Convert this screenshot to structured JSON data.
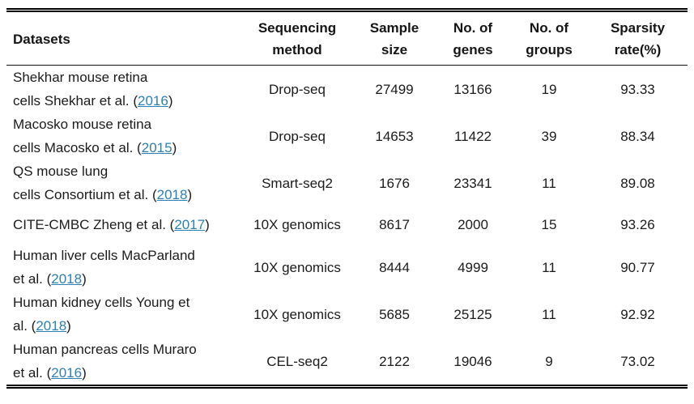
{
  "page": {
    "background": "#ffffff",
    "text_color": "#1b1b1b",
    "link_color": "#2c80b4"
  },
  "table": {
    "headers": {
      "datasets": "Datasets",
      "method_line1": "Sequencing",
      "method_line2": "method",
      "sample_line1": "Sample",
      "sample_line2": "size",
      "genes_line1": "No. of",
      "genes_line2": "genes",
      "groups_line1": "No. of",
      "groups_line2": "groups",
      "sparsity_line1": "Sparsity",
      "sparsity_line2": "rate(%)"
    },
    "rows": [
      {
        "line1": "Shekhar mouse retina",
        "line2_pre": "cells Shekhar et al. (",
        "year": "2016",
        "line2_post": ")",
        "method": "Drop-seq",
        "sample": "27499",
        "genes": "13166",
        "groups": "19",
        "sparsity": "93.33"
      },
      {
        "line1": "Macosko mouse retina",
        "line2_pre": "cells Macosko et al. (",
        "year": "2015",
        "line2_post": ")",
        "method": "Drop-seq",
        "sample": "14653",
        "genes": "11422",
        "groups": "39",
        "sparsity": "88.34"
      },
      {
        "line1": "QS mouse lung",
        "line2_pre": "cells Consortium et al. (",
        "year": "2018",
        "line2_post": ")",
        "method": "Smart-seq2",
        "sample": "1676",
        "genes": "23341",
        "groups": "11",
        "sparsity": "89.08"
      },
      {
        "line1": "",
        "line2_pre": "CITE-CMBC Zheng et al. (",
        "year": "2017",
        "line2_post": ")",
        "method": "10X genomics",
        "sample": "8617",
        "genes": "2000",
        "groups": "15",
        "sparsity": "93.26"
      },
      {
        "line1": "Human liver cells MacParland",
        "line2_pre": "et al. (",
        "year": "2018",
        "line2_post": ")",
        "method": "10X genomics",
        "sample": "8444",
        "genes": "4999",
        "groups": "11",
        "sparsity": "90.77"
      },
      {
        "line1": "Human kidney cells Young et",
        "line2_pre": "al. (",
        "year": "2018",
        "line2_post": ")",
        "method": "10X genomics",
        "sample": "5685",
        "genes": "25125",
        "groups": "11",
        "sparsity": "92.92"
      },
      {
        "line1": "Human pancreas cells Muraro",
        "line2_pre": "et al. (",
        "year": "2016",
        "line2_post": ")",
        "method": "CEL-seq2",
        "sample": "2122",
        "genes": "19046",
        "groups": "9",
        "sparsity": "73.02"
      }
    ]
  }
}
